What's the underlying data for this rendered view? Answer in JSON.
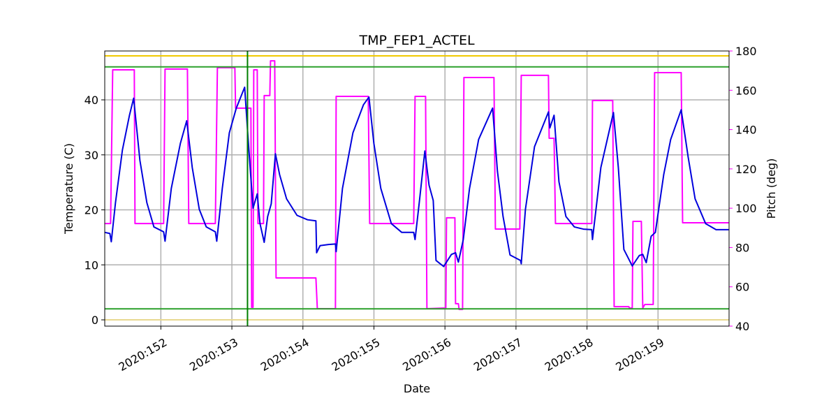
{
  "chart_data": {
    "type": "line",
    "title": "TMP_FEP1_ACTEL",
    "x_label": "Date",
    "y_label": "Temperature (C)",
    "y2_label": "Pitch (deg)",
    "y2_color": "#ff00ff",
    "xlim": [
      151.21,
      160.0
    ],
    "xticks": [
      {
        "value": 152,
        "label": "2020:152"
      },
      {
        "value": 153,
        "label": "2020:153"
      },
      {
        "value": 154,
        "label": "2020:154"
      },
      {
        "value": 155,
        "label": "2020:155"
      },
      {
        "value": 156,
        "label": "2020:156"
      },
      {
        "value": 157,
        "label": "2020:157"
      },
      {
        "value": 158,
        "label": "2020:158"
      },
      {
        "value": 159,
        "label": "2020:159"
      }
    ],
    "ylim": [
      -1.14,
      48.89
    ],
    "yticks": [
      0,
      10,
      20,
      30,
      40
    ],
    "y2lim": [
      40,
      180
    ],
    "y2ticks": [
      40,
      60,
      80,
      100,
      120,
      140,
      160,
      180
    ],
    "grid": true,
    "hlines": [
      {
        "value": 48,
        "color": "#f0c800"
      },
      {
        "value": 0,
        "color": "#e8d890"
      },
      {
        "value": 46,
        "color": "#2ca02c"
      },
      {
        "value": 2,
        "color": "#2ca02c"
      }
    ],
    "vlines": [
      {
        "value": 153.22,
        "color": "#008000"
      }
    ],
    "series": [
      {
        "color": "#ff00ff",
        "axis": "y2",
        "x": [
          151.213,
          151.292,
          151.322,
          151.626,
          151.636,
          152.039,
          152.059,
          152.374,
          152.393,
          152.767,
          152.796,
          153.042,
          153.052,
          153.268,
          153.278,
          153.298,
          153.308,
          153.357,
          153.367,
          153.445,
          153.455,
          153.534,
          153.544,
          153.603,
          153.622,
          154.183,
          154.203,
          154.458,
          154.468,
          154.92,
          154.94,
          155.56,
          155.579,
          155.727,
          155.746,
          156.012,
          156.022,
          156.14,
          156.149,
          156.189,
          156.199,
          156.248,
          156.267,
          156.69,
          156.71,
          157.054,
          157.074,
          157.457,
          157.467,
          157.536,
          157.556,
          158.067,
          158.077,
          158.362,
          158.382,
          158.588,
          158.598,
          158.637,
          158.647,
          158.765,
          158.785,
          158.814,
          158.932,
          158.952,
          159.326,
          159.346,
          159.994
        ],
        "values": [
          92.2,
          92.2,
          170.4,
          170.4,
          92.2,
          92.2,
          170.8,
          170.8,
          92.2,
          92.2,
          171.5,
          171.5,
          150.9,
          150.9,
          49.6,
          49.6,
          170.4,
          170.4,
          92.2,
          92.2,
          157.3,
          157.3,
          175.0,
          175.0,
          64.5,
          64.5,
          48.9,
          48.9,
          156.9,
          156.9,
          92.2,
          92.2,
          156.9,
          156.9,
          48.9,
          49.2,
          95.1,
          95.1,
          51.4,
          51.4,
          48.5,
          48.5,
          166.5,
          166.5,
          89.4,
          89.4,
          167.6,
          167.6,
          135.6,
          135.6,
          92.2,
          92.2,
          154.8,
          154.8,
          49.9,
          49.9,
          49.2,
          49.2,
          93.3,
          93.3,
          49.2,
          51.0,
          51.0,
          169.0,
          169.0,
          92.6,
          92.6
        ]
      },
      {
        "color": "#0000dd",
        "x": [
          151.213,
          151.282,
          151.302,
          151.361,
          151.459,
          151.558,
          151.617,
          151.705,
          151.803,
          151.902,
          152.039,
          152.059,
          152.147,
          152.275,
          152.364,
          152.442,
          152.541,
          152.639,
          152.767,
          152.787,
          152.865,
          152.964,
          153.062,
          153.18,
          153.229,
          153.298,
          153.357,
          153.396,
          153.455,
          153.504,
          153.554,
          153.613,
          153.672,
          153.77,
          153.917,
          154.065,
          154.183,
          154.193,
          154.242,
          154.36,
          154.458,
          154.468,
          154.557,
          154.704,
          154.852,
          154.93,
          154.999,
          155.097,
          155.245,
          155.392,
          155.56,
          155.579,
          155.638,
          155.717,
          155.776,
          155.835,
          155.874,
          155.982,
          156.091,
          156.149,
          156.189,
          156.258,
          156.346,
          156.474,
          156.671,
          156.739,
          156.818,
          156.916,
          157.064,
          157.074,
          157.133,
          157.261,
          157.457,
          157.477,
          157.536,
          157.605,
          157.703,
          157.821,
          157.949,
          158.067,
          158.077,
          158.195,
          158.372,
          158.441,
          158.519,
          158.637,
          158.736,
          158.785,
          158.834,
          158.903,
          158.962,
          159.08,
          159.178,
          159.326,
          159.424,
          159.522,
          159.67,
          159.817,
          159.994
        ],
        "values": [
          15.9,
          15.7,
          14.2,
          21.3,
          30.9,
          37.2,
          40.3,
          29.0,
          21.3,
          16.9,
          16.0,
          14.3,
          23.9,
          32.1,
          36.2,
          27.7,
          20.1,
          16.9,
          16.0,
          14.3,
          23.9,
          34.0,
          38.5,
          42.3,
          32.8,
          20.3,
          22.9,
          17.5,
          14.1,
          18.8,
          21.1,
          30.2,
          26.4,
          22.0,
          19.0,
          18.2,
          18.0,
          12.2,
          13.5,
          13.7,
          13.8,
          12.4,
          23.9,
          34.0,
          39.1,
          40.5,
          32.1,
          23.9,
          17.5,
          15.9,
          15.9,
          14.6,
          21.3,
          30.7,
          24.5,
          21.7,
          10.8,
          9.7,
          11.9,
          12.2,
          10.5,
          14.6,
          23.9,
          32.8,
          38.5,
          27.0,
          18.8,
          11.8,
          10.8,
          10.2,
          20.1,
          31.5,
          37.8,
          34.9,
          37.2,
          25.1,
          18.8,
          16.9,
          16.5,
          16.4,
          14.6,
          27.7,
          37.7,
          27.7,
          12.8,
          9.8,
          11.7,
          11.9,
          10.4,
          15.2,
          15.9,
          26.4,
          32.8,
          38.2,
          29.6,
          22.0,
          17.5,
          16.4,
          16.4
        ]
      }
    ]
  }
}
